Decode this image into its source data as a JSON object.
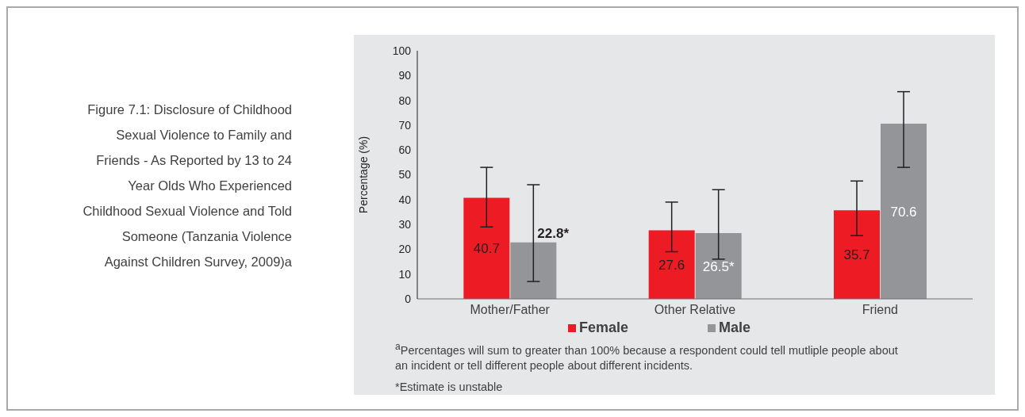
{
  "chart_data": {
    "type": "bar",
    "title": "Figure 7.1: Disclosure of Childhood Sexual Violence to Family and Friends - As Reported by 13 to 24 Year Olds Who Experienced Childhood Sexual Violence and Told Someone (Tanzania Violence Against Children Survey, 2009)a",
    "ylabel": "Percentage (%)",
    "categories": [
      "Mother/Father",
      "Other Relative",
      "Friend"
    ],
    "series": [
      {
        "name": "Female",
        "color": "#ed1c24",
        "values": [
          40.7,
          27.6,
          35.7
        ],
        "errors": [
          [
            29,
            53
          ],
          [
            19,
            39
          ],
          [
            25.5,
            47.5
          ]
        ],
        "value_labels": [
          "40.7",
          "27.6",
          "35.7"
        ]
      },
      {
        "name": "Male",
        "color": "#939598",
        "values": [
          22.8,
          26.5,
          70.6
        ],
        "errors": [
          [
            7,
            46
          ],
          [
            16,
            44
          ],
          [
            53,
            83.5
          ]
        ],
        "value_labels": [
          "22.8*",
          "26.5*",
          "70.6"
        ]
      }
    ],
    "ylim": [
      0,
      100
    ],
    "yticks": [
      0,
      10,
      20,
      30,
      40,
      50,
      60,
      70,
      80,
      90,
      100
    ],
    "grid": false,
    "legend": "bottom",
    "annotations": [
      "$^{a}$Percentages will sum to greater than 100% because a respondent could tell mutliple people about an incident or tell different people about different incidents.",
      "*Estimate is unstable"
    ]
  }
}
